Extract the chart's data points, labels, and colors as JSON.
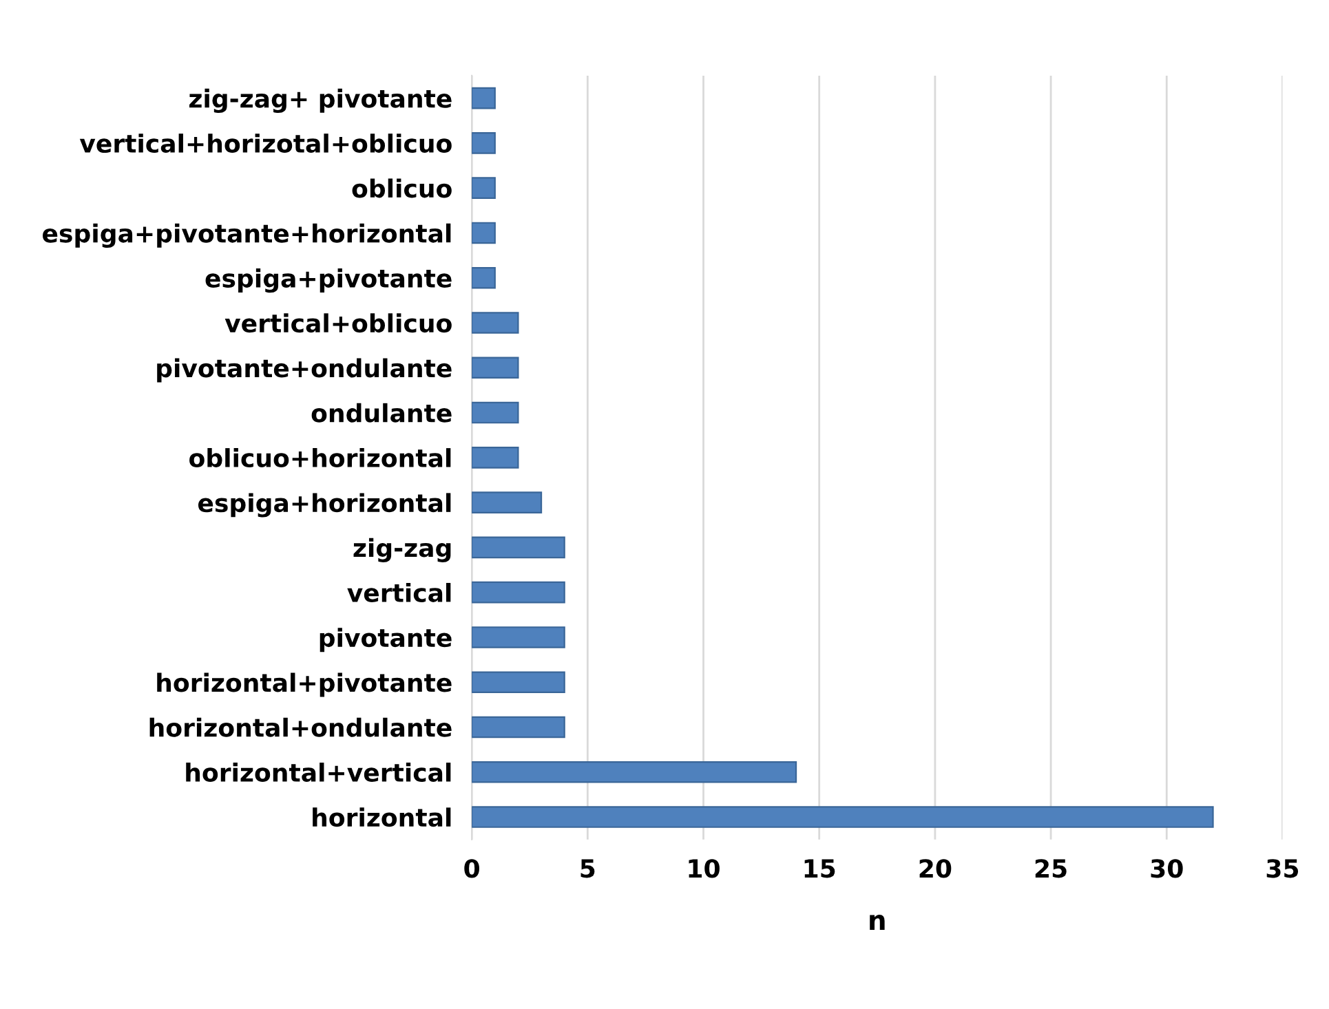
{
  "chart_data": {
    "type": "bar",
    "orientation": "horizontal",
    "xlabel": "n",
    "categories": [
      "zig-zag+ pivotante",
      "vertical+horizotal+oblicuo",
      "oblicuo",
      "espiga+pivotante+horizontal",
      "espiga+pivotante",
      "vertical+oblicuo",
      "pivotante+ondulante",
      "ondulante",
      "oblicuo+horizontal",
      "espiga+horizontal",
      "zig-zag",
      "vertical",
      "pivotante",
      "horizontal+pivotante",
      "horizontal+ondulante",
      "horizontal+vertical",
      "horizontal"
    ],
    "values": [
      1,
      1,
      1,
      1,
      1,
      2,
      2,
      2,
      2,
      3,
      4,
      4,
      4,
      4,
      4,
      14,
      32
    ],
    "color": "#4f81bd",
    "xlim": [
      0,
      35
    ],
    "xticks": [
      0,
      5,
      10,
      15,
      20,
      25,
      30,
      35
    ],
    "grid": "x",
    "legend": false
  }
}
